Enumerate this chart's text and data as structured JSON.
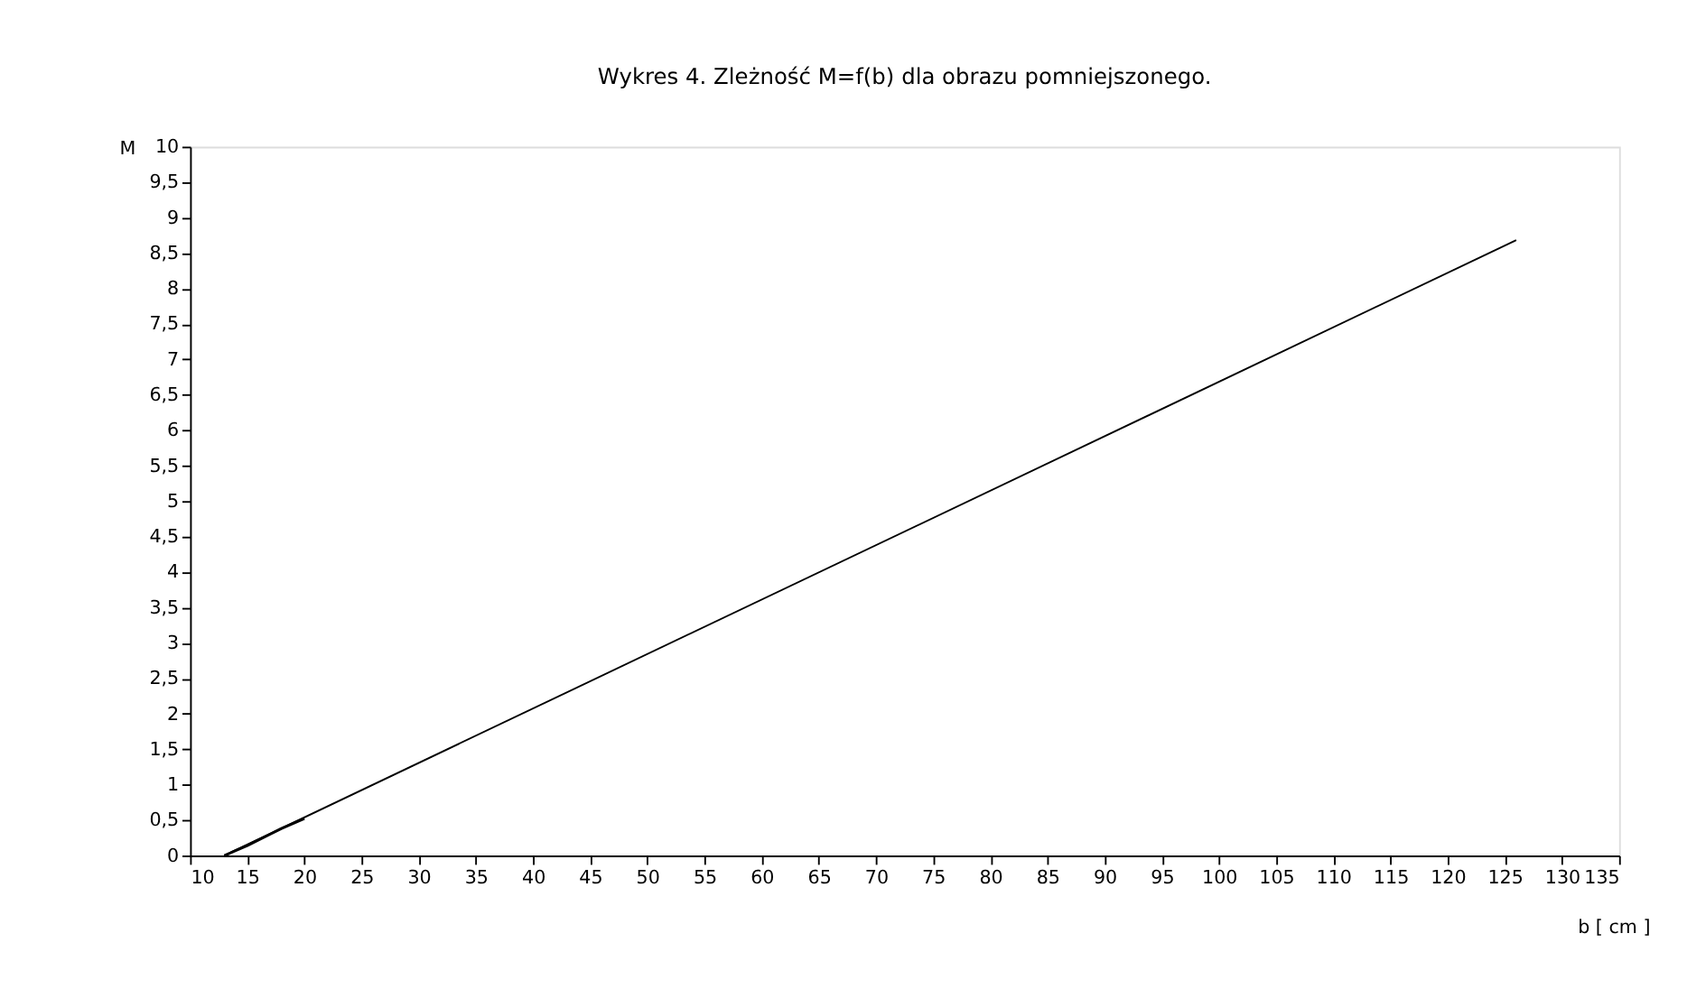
{
  "chart_data": {
    "type": "line",
    "title": "Wykres 4.  Zleżność M=f(b) dla obrazu pomniejszonego.",
    "xlabel": "b [ cm ]",
    "ylabel": "M",
    "series": [
      {
        "color": "#000000",
        "x": [
          13,
          126
        ],
        "values": [
          0,
          8.68
        ]
      },
      {
        "color": "#000000",
        "x": [
          13,
          15,
          17,
          18,
          20
        ],
        "values": [
          0,
          0.14,
          0.3,
          0.38,
          0.52
        ]
      }
    ],
    "xlim": [
      10,
      135
    ],
    "xticks": [
      10,
      15,
      20,
      25,
      30,
      35,
      40,
      45,
      50,
      55,
      60,
      65,
      70,
      75,
      80,
      85,
      90,
      95,
      100,
      105,
      110,
      115,
      120,
      125,
      130,
      135
    ],
    "ylim": [
      0,
      10
    ],
    "yticks": [
      0,
      {
        "value": 0.5,
        "label": "0,5"
      },
      1,
      {
        "value": 1.5,
        "label": "1,5"
      },
      2,
      {
        "value": 2.5,
        "label": "2,5"
      },
      3,
      {
        "value": 3.5,
        "label": "3,5"
      },
      4,
      {
        "value": 4.5,
        "label": "4,5"
      },
      5,
      {
        "value": 5.5,
        "label": "5,5"
      },
      6,
      {
        "value": 6.5,
        "label": "6,5"
      },
      7,
      {
        "value": 7.5,
        "label": "7,5"
      },
      8,
      {
        "value": 8.5,
        "label": "8,5"
      },
      9,
      {
        "value": 9.5,
        "label": "9,5"
      },
      10
    ],
    "grid": false,
    "marker": "none",
    "line_style": "solid"
  }
}
